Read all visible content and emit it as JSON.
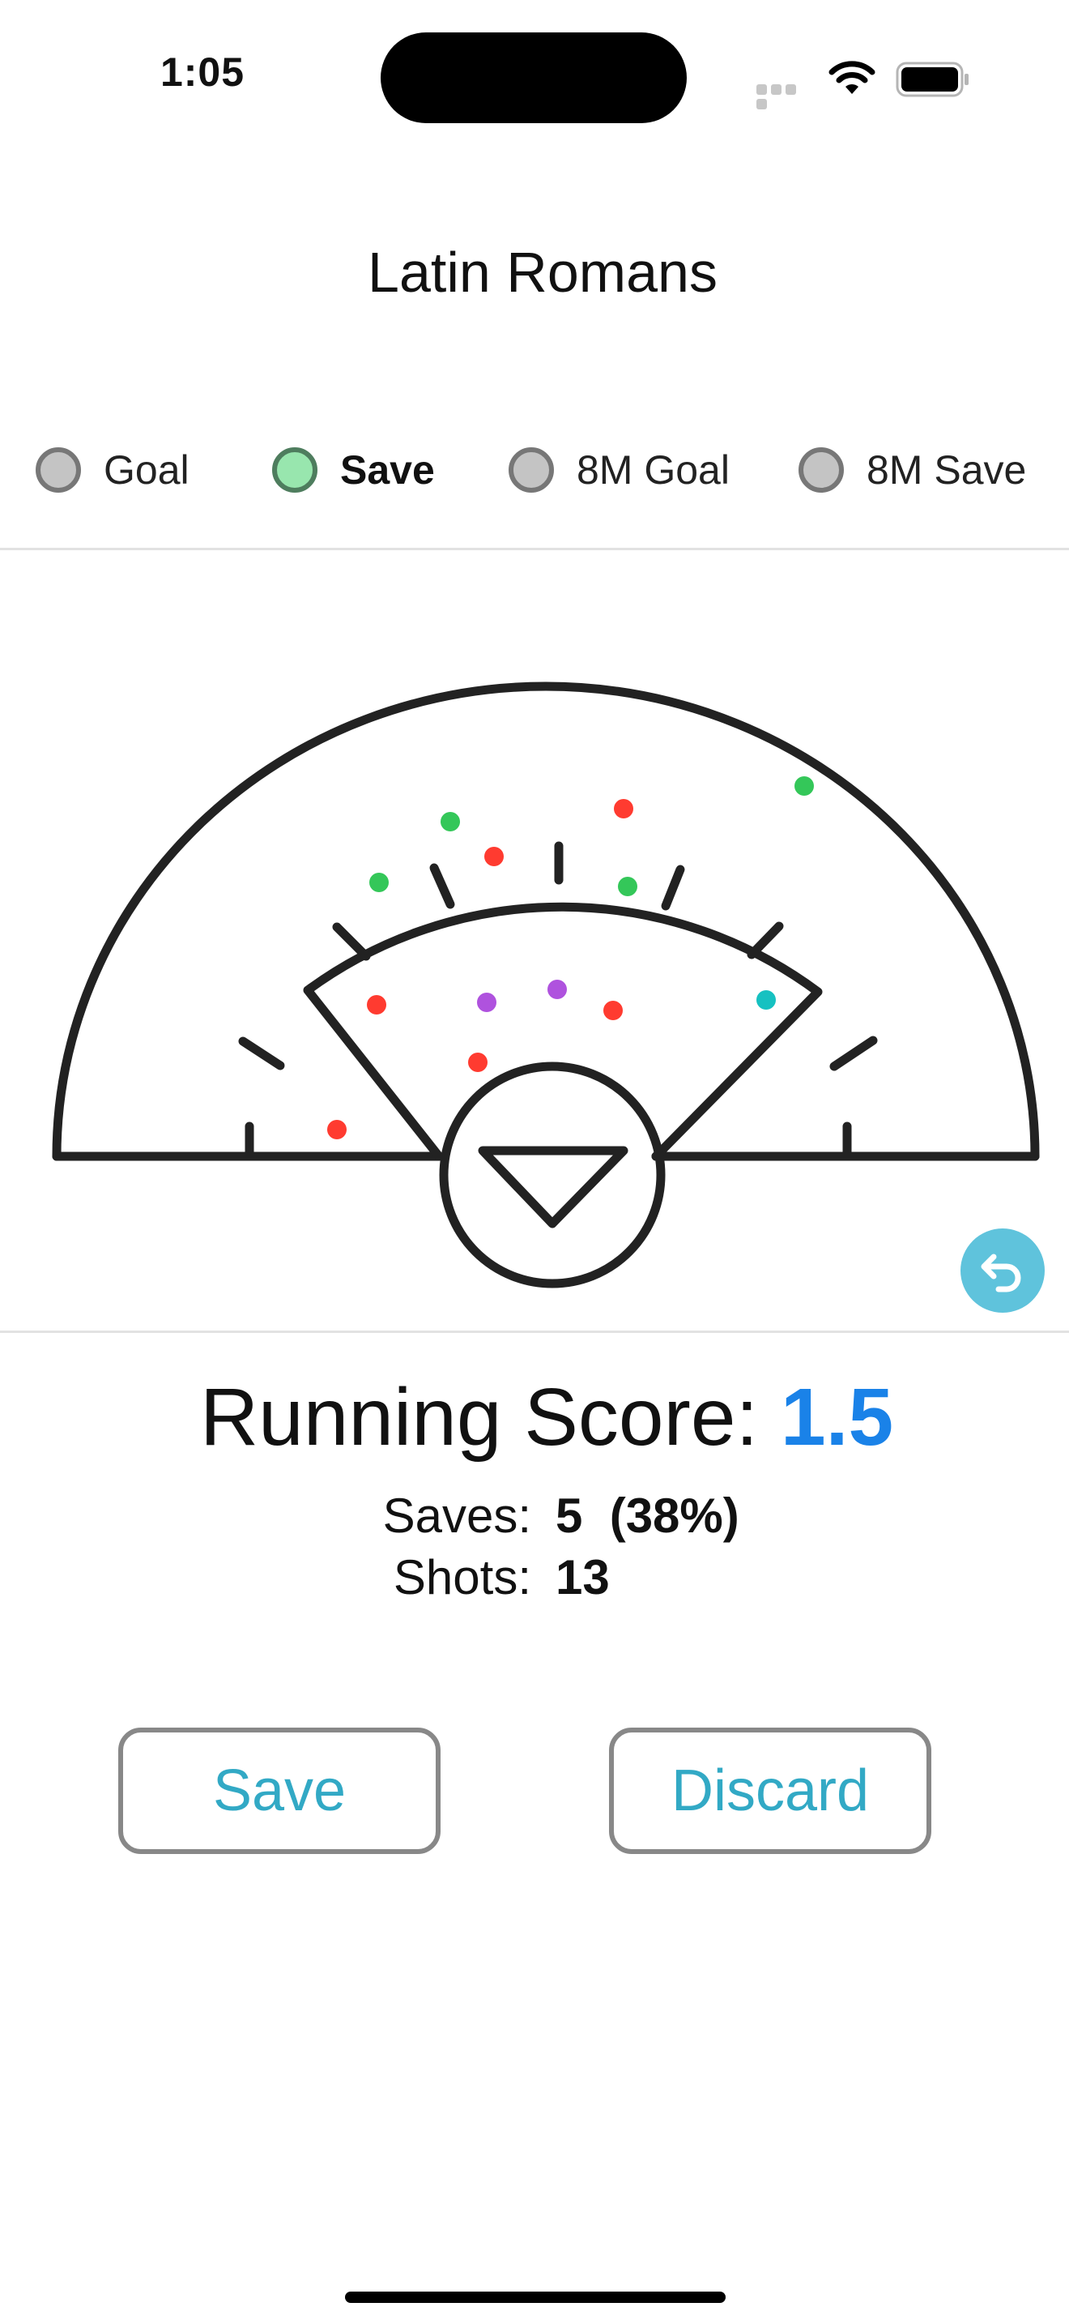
{
  "status_bar": {
    "time": "1:05"
  },
  "title": "Latin Romans",
  "shot_types": [
    {
      "label": "Goal",
      "selected": false
    },
    {
      "label": "Save",
      "selected": true
    },
    {
      "label": "8M Goal",
      "selected": false
    },
    {
      "label": "8M Save",
      "selected": false
    }
  ],
  "shot_markers": [
    {
      "type": "save",
      "color": "#34c759"
    },
    {
      "type": "save",
      "color": "#34c759"
    },
    {
      "type": "save",
      "color": "#34c759"
    },
    {
      "type": "save",
      "color": "#34c759"
    },
    {
      "type": "goal",
      "color": "#ff3b30"
    },
    {
      "type": "goal",
      "color": "#ff3b30"
    },
    {
      "type": "goal",
      "color": "#ff3b30"
    },
    {
      "type": "goal",
      "color": "#ff3b30"
    },
    {
      "type": "goal",
      "color": "#ff3b30"
    },
    {
      "type": "goal",
      "color": "#ff3b30"
    },
    {
      "type": "8m_goal",
      "color": "#af52de"
    },
    {
      "type": "8m_goal",
      "color": "#af52de"
    },
    {
      "type": "8m_save",
      "color": "#16c1c1"
    }
  ],
  "undo_icon": "undo-arrow-icon",
  "score": {
    "label": "Running Score:",
    "value": "1.5"
  },
  "stats": {
    "saves_label": "Saves:",
    "saves_value": "5  (38%)",
    "shots_label": "Shots:",
    "shots_value": "13"
  },
  "buttons": {
    "save": "Save",
    "discard": "Discard"
  },
  "colors": {
    "accent_blue": "#1a82e8",
    "button_text": "#32a9c5",
    "undo_bg": "#5fc3dc",
    "selected_radio": "#98e6ae"
  }
}
